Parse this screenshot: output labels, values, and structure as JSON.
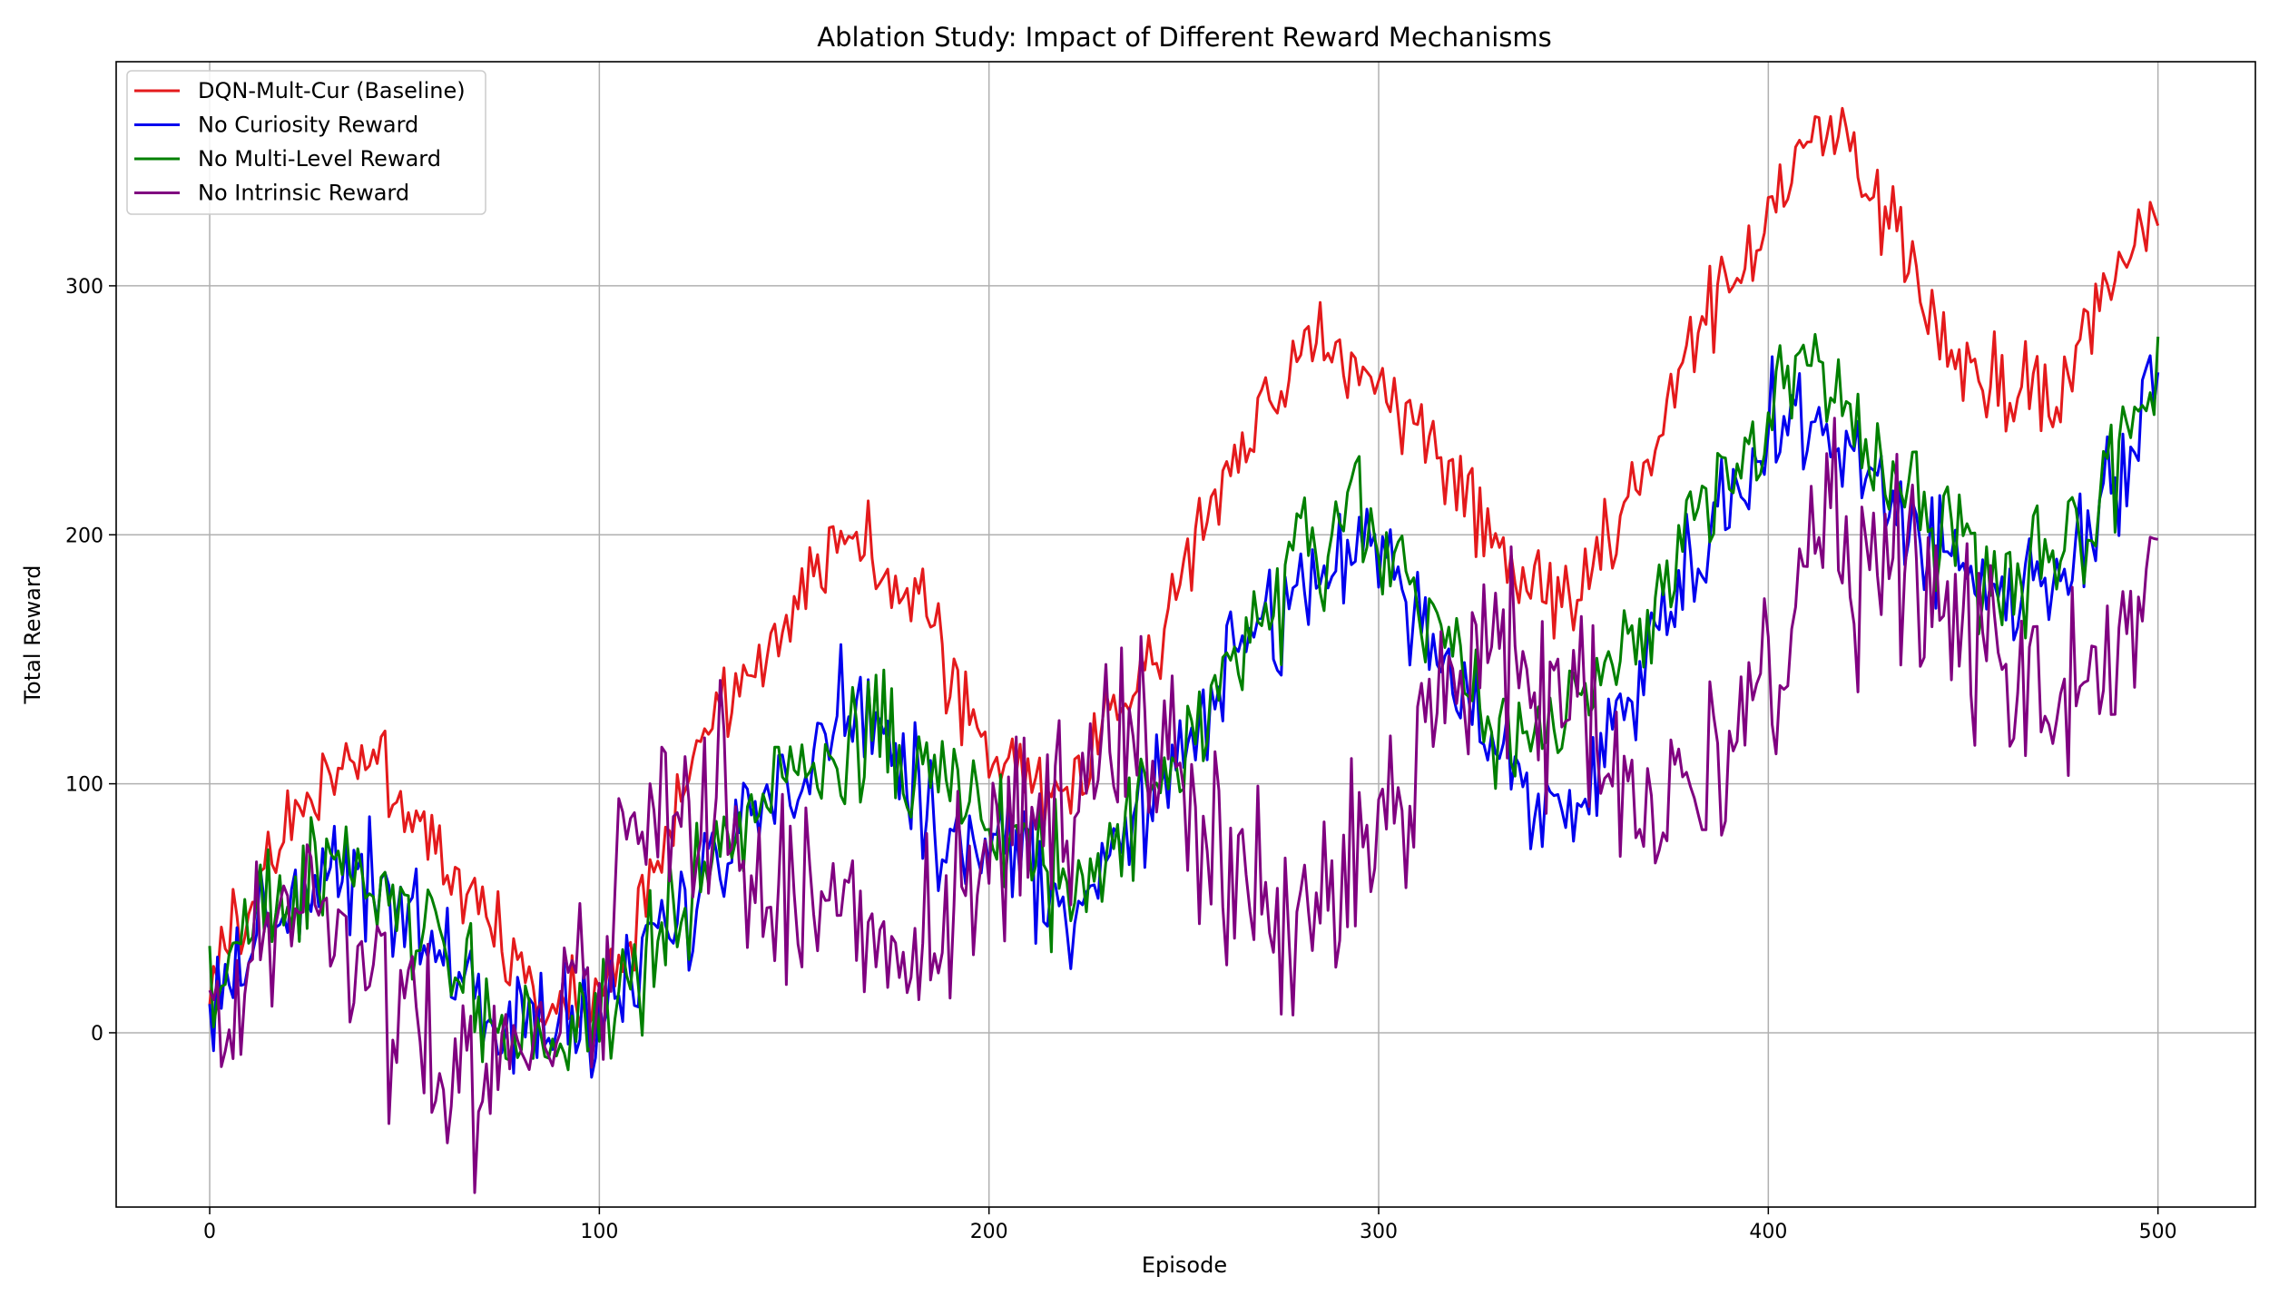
{
  "chart_data": {
    "type": "line",
    "title": "Ablation Study: Impact of Different Reward Mechanisms",
    "xlabel": "Episode",
    "ylabel": "Total Reward",
    "xlim": [
      -24,
      525
    ],
    "ylim": [
      -70,
      390
    ],
    "xticks": [
      0,
      100,
      200,
      300,
      400,
      500
    ],
    "yticks": [
      0,
      100,
      200,
      300
    ],
    "grid": true,
    "legend_position": "top-left",
    "series": [
      {
        "name": "DQN-Mult-Cur (Baseline)",
        "color": "#e41a1c",
        "x": [
          0,
          10,
          20,
          30,
          35,
          45,
          55,
          65,
          75,
          85,
          95,
          105,
          115,
          125,
          135,
          145,
          155,
          160,
          170,
          175,
          180,
          185,
          190,
          200,
          210,
          220,
          230,
          240,
          250,
          260,
          270,
          280,
          285,
          290,
          300,
          310,
          320,
          330,
          340,
          350,
          360,
          370,
          380,
          390,
          400,
          410,
          415,
          420,
          425,
          430,
          440,
          450,
          460,
          470,
          475,
          480,
          490,
          500
        ],
        "y": [
          20,
          55,
          80,
          105,
          115,
          100,
          80,
          58,
          35,
          10,
          12,
          30,
          70,
          110,
          140,
          165,
          185,
          200,
          190,
          178,
          175,
          165,
          145,
          110,
          100,
          95,
          120,
          145,
          190,
          220,
          255,
          270,
          285,
          265,
          265,
          240,
          220,
          195,
          180,
          175,
          200,
          230,
          270,
          300,
          330,
          355,
          362,
          360,
          345,
          330,
          290,
          270,
          262,
          255,
          250,
          280,
          310,
          337
        ]
      },
      {
        "name": "No Curiosity Reward",
        "color": "#0000ee",
        "x": [
          0,
          10,
          20,
          30,
          40,
          50,
          60,
          70,
          80,
          90,
          100,
          110,
          120,
          130,
          140,
          150,
          160,
          165,
          170,
          180,
          190,
          200,
          210,
          220,
          230,
          240,
          250,
          260,
          270,
          280,
          290,
          300,
          310,
          320,
          330,
          340,
          350,
          360,
          370,
          380,
          390,
          400,
          410,
          420,
          430,
          440,
          450,
          460,
          470,
          480,
          490,
          500
        ],
        "y": [
          10,
          35,
          55,
          65,
          65,
          50,
          30,
          10,
          0,
          5,
          10,
          20,
          40,
          70,
          90,
          110,
          120,
          140,
          125,
          100,
          80,
          75,
          60,
          50,
          70,
          95,
          115,
          140,
          165,
          180,
          185,
          195,
          170,
          140,
          110,
          90,
          100,
          120,
          150,
          185,
          220,
          240,
          245,
          235,
          220,
          200,
          185,
          175,
          180,
          195,
          220,
          258
        ]
      },
      {
        "name": "No Multi-Level Reward",
        "color": "#008000",
        "x": [
          0,
          10,
          20,
          30,
          40,
          50,
          60,
          70,
          80,
          90,
          100,
          110,
          120,
          130,
          140,
          150,
          160,
          170,
          180,
          190,
          200,
          210,
          220,
          230,
          240,
          250,
          260,
          270,
          280,
          290,
          295,
          300,
          310,
          320,
          330,
          340,
          350,
          360,
          370,
          380,
          390,
          400,
          410,
          420,
          430,
          440,
          450,
          460,
          470,
          480,
          490,
          500
        ],
        "y": [
          20,
          40,
          55,
          65,
          60,
          50,
          30,
          12,
          0,
          -5,
          12,
          25,
          45,
          70,
          90,
          105,
          115,
          120,
          110,
          100,
          85,
          70,
          60,
          70,
          90,
          115,
          140,
          165,
          185,
          200,
          215,
          195,
          170,
          150,
          125,
          115,
          125,
          150,
          175,
          200,
          225,
          255,
          270,
          245,
          230,
          210,
          195,
          185,
          190,
          200,
          235,
          272
        ]
      },
      {
        "name": "No Intrinsic Reward",
        "color": "#800080",
        "x": [
          0,
          5,
          10,
          20,
          30,
          40,
          50,
          60,
          70,
          77,
          80,
          90,
          100,
          105,
          110,
          120,
          130,
          140,
          150,
          160,
          170,
          180,
          190,
          200,
          210,
          220,
          230,
          240,
          250,
          260,
          270,
          280,
          290,
          300,
          310,
          320,
          330,
          340,
          350,
          360,
          370,
          380,
          390,
          400,
          410,
          415,
          420,
          430,
          440,
          450,
          460,
          470,
          480,
          490,
          500
        ],
        "y": [
          10,
          -10,
          30,
          45,
          45,
          30,
          10,
          -10,
          -15,
          -30,
          0,
          5,
          35,
          60,
          80,
          90,
          90,
          75,
          55,
          45,
          35,
          30,
          40,
          60,
          85,
          100,
          110,
          115,
          100,
          70,
          55,
          45,
          60,
          80,
          115,
          140,
          150,
          150,
          130,
          110,
          95,
          95,
          115,
          140,
          175,
          200,
          190,
          185,
          170,
          160,
          150,
          145,
          145,
          160,
          185
        ]
      }
    ]
  }
}
